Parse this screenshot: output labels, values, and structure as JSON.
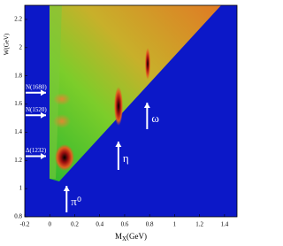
{
  "chart_data": {
    "type": "density",
    "x_label": {
      "main": "M",
      "sub": "X",
      "unit": "(GeV)"
    },
    "y_label": "W(GeV)",
    "xlim": [
      -0.2,
      1.5
    ],
    "ylim": [
      0.8,
      2.3
    ],
    "xticks": [
      -0.2,
      0,
      0.2,
      0.4,
      0.6,
      0.8,
      1,
      1.2,
      1.4
    ],
    "yticks": [
      0.8,
      1,
      1.2,
      1.4,
      1.6,
      1.8,
      2,
      2.2
    ],
    "background_color": "#0c18c8",
    "annotations": [
      {
        "text": "N(1680)",
        "y": 1.68
      },
      {
        "text": "N(1520)",
        "y": 1.52
      },
      {
        "text": "Δ(1232)",
        "y": 1.23
      },
      {
        "text": "π⁰",
        "x": 0.135
      },
      {
        "text": "η",
        "x": 0.55
      },
      {
        "text": "ω",
        "x": 0.78
      }
    ]
  }
}
